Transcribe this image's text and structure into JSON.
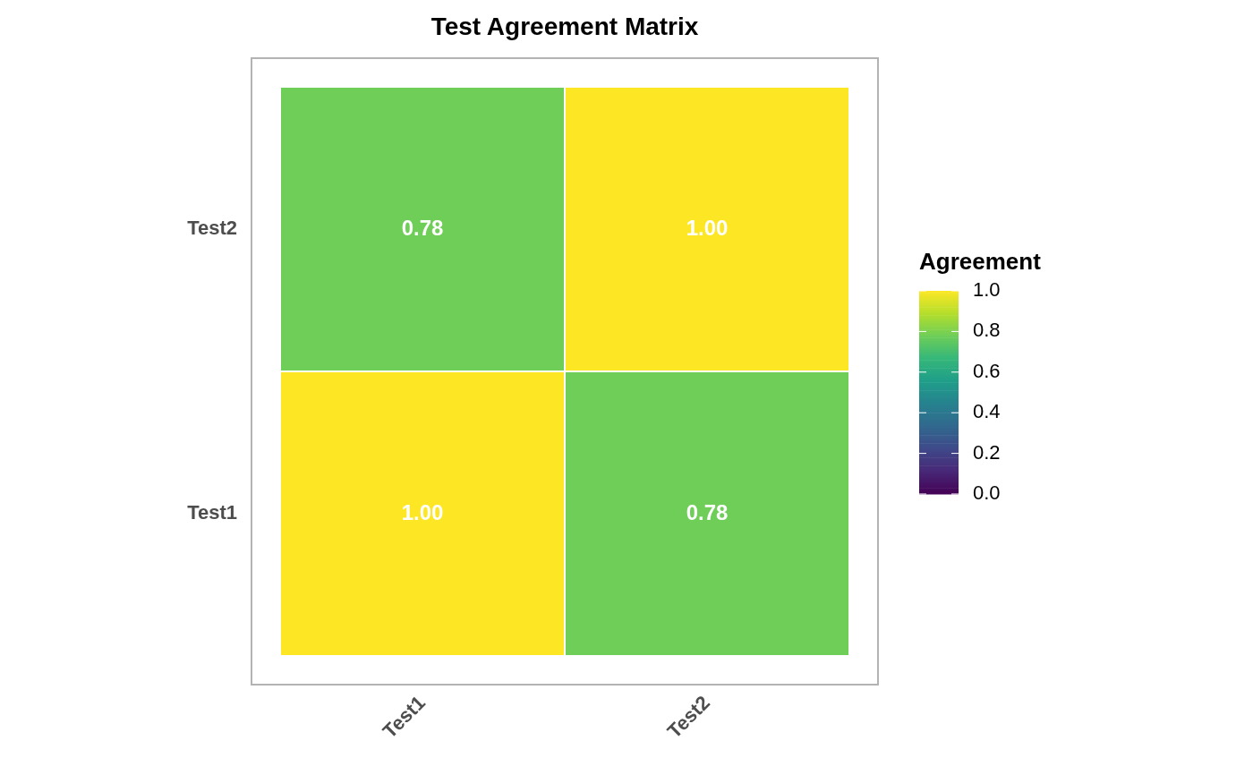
{
  "chart_data": {
    "type": "heatmap",
    "title": "Test Agreement Matrix",
    "legend_title": "Agreement",
    "categories": [
      "Test1",
      "Test2"
    ],
    "y_categories": [
      "Test2",
      "Test1"
    ],
    "cells": [
      [
        0.78,
        1.0
      ],
      [
        1.0,
        0.78
      ]
    ],
    "cell_labels": [
      [
        "0.78",
        "1.00"
      ],
      [
        "1.00",
        "0.78"
      ]
    ],
    "clim": [
      0,
      1
    ],
    "cticks": [
      {
        "value": 0,
        "label": "0.0"
      },
      {
        "value": 0.2,
        "label": "0.2"
      },
      {
        "value": 0.4,
        "label": "0.4"
      },
      {
        "value": 0.6,
        "label": "0.6"
      },
      {
        "value": 0.8,
        "label": "0.8"
      },
      {
        "value": 1,
        "label": "1.0"
      }
    ]
  }
}
